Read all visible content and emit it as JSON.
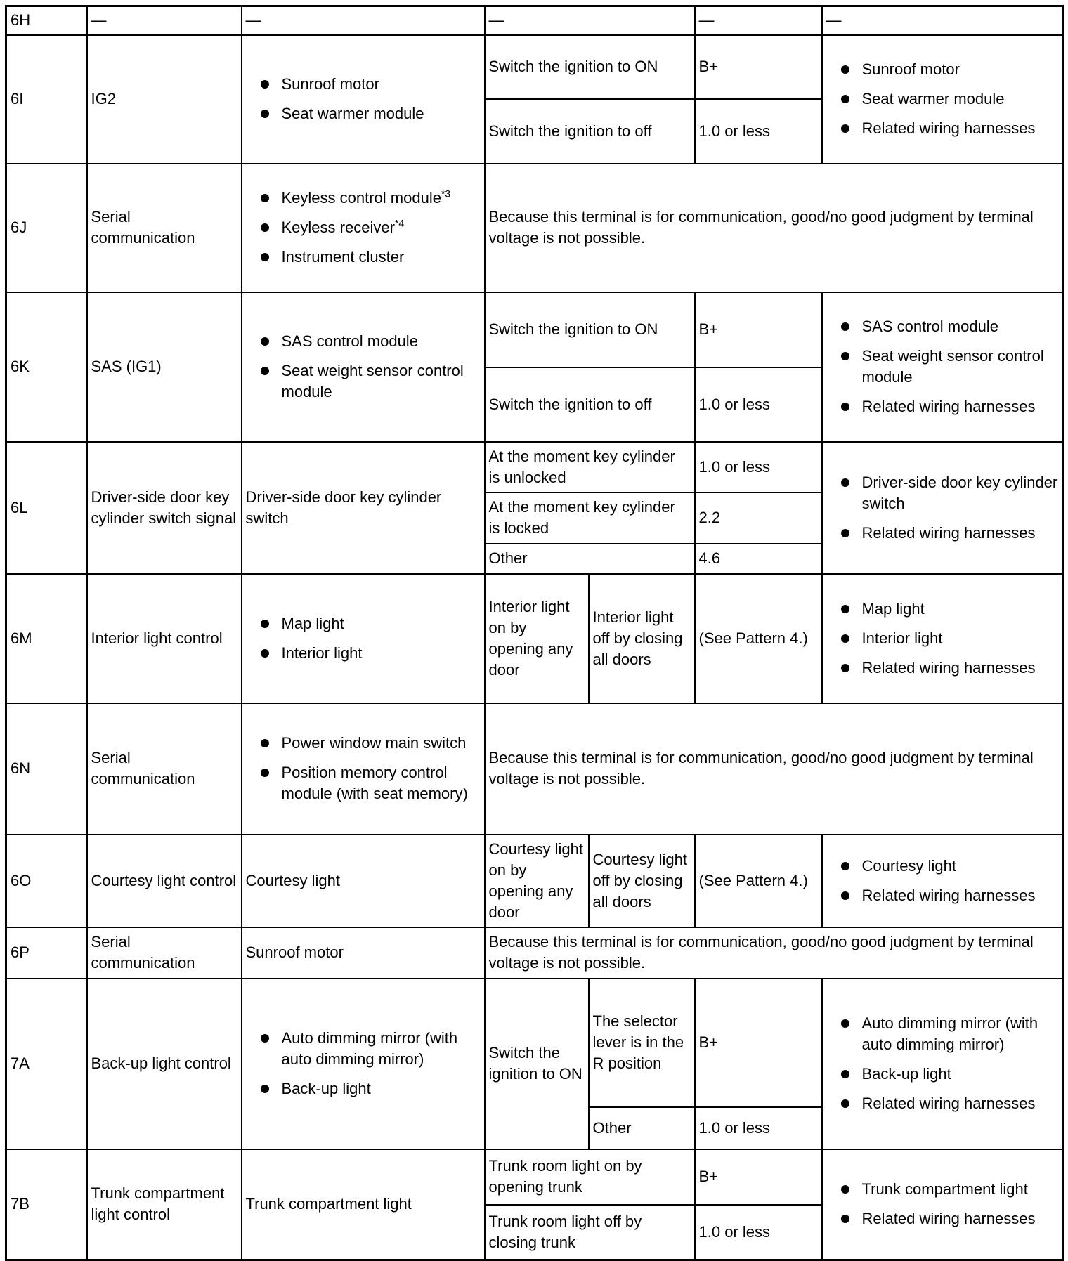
{
  "rows": {
    "r6H": {
      "terminal": "6H",
      "signal": "—",
      "connected": "—",
      "condition": "—",
      "voltage": "—",
      "inspection": "—"
    },
    "r6I": {
      "terminal": "6I",
      "signal": "IG2",
      "connected": [
        "Sunroof motor",
        "Seat warmer module"
      ],
      "conditions": [
        "Switch the ignition to ON",
        "Switch the ignition to off"
      ],
      "voltages": [
        "B+",
        "1.0 or less"
      ],
      "inspection": [
        "Sunroof motor",
        "Seat warmer module",
        "Related wiring harnesses"
      ]
    },
    "r6J": {
      "terminal": "6J",
      "signal": "Serial communication",
      "connected": [
        "Keyless control module",
        "Keyless receiver",
        "Instrument cluster"
      ],
      "superscripts": [
        "*3",
        "*4"
      ],
      "note": "Because this terminal is for communication, good/no good judgment by terminal voltage is not possible."
    },
    "r6K": {
      "terminal": "6K",
      "signal": "SAS (IG1)",
      "connected": [
        "SAS control module",
        "Seat weight sensor control module"
      ],
      "conditions": [
        "Switch the ignition to ON",
        "Switch the ignition to off"
      ],
      "voltages": [
        "B+",
        "1.0 or less"
      ],
      "inspection": [
        "SAS control module",
        "Seat weight sensor control module",
        "Related wiring harnesses"
      ]
    },
    "r6L": {
      "terminal": "6L",
      "signal": "Driver-side door key cylinder switch signal",
      "connected": "Driver-side door key cylinder switch",
      "conditions": [
        "At the moment key cylinder is unlocked",
        "At the moment key cylinder is locked",
        "Other"
      ],
      "voltages": [
        "1.0 or less",
        "2.2",
        "4.6"
      ],
      "inspection": [
        "Driver-side door key cylinder switch",
        "Related wiring harnesses"
      ]
    },
    "r6M": {
      "terminal": "6M",
      "signal": "Interior light control",
      "connected": [
        "Map light",
        "Interior light"
      ],
      "conditions": [
        "Interior light on by opening any door",
        "Interior light off by closing all doors"
      ],
      "voltage": "(See Pattern 4.)",
      "inspection": [
        "Map light",
        "Interior light",
        "Related wiring harnesses"
      ]
    },
    "r6N": {
      "terminal": "6N",
      "signal": "Serial communication",
      "connected": [
        "Power window main switch",
        "Position memory control module (with seat memory)"
      ],
      "note": "Because this terminal is for communication, good/no good judgment by terminal voltage is not possible."
    },
    "r6O": {
      "terminal": "6O",
      "signal": "Courtesy light control",
      "connected": "Courtesy light",
      "conditions": [
        "Courtesy light on by opening any door",
        "Courtesy light off by closing all doors"
      ],
      "voltage": "(See Pattern 4.)",
      "inspection": [
        "Courtesy light",
        "Related wiring harnesses"
      ]
    },
    "r6P": {
      "terminal": "6P",
      "signal": "Serial communication",
      "connected": "Sunroof motor",
      "note": "Because this terminal is for communication, good/no good judgment by terminal voltage is not possible."
    },
    "r7A": {
      "terminal": "7A",
      "signal": "Back-up light control",
      "connected": [
        "Auto dimming mirror (with auto dimming mirror)",
        "Back-up light"
      ],
      "condition_main": "Switch the ignition to ON",
      "conditions": [
        "The selector lever is in the R position",
        "Other"
      ],
      "voltages": [
        "B+",
        "1.0 or less"
      ],
      "inspection": [
        "Auto dimming mirror (with auto dimming mirror)",
        "Back-up light",
        "Related wiring harnesses"
      ]
    },
    "r7B": {
      "terminal": "7B",
      "signal": "Trunk compartment light control",
      "connected": "Trunk compartment light",
      "conditions": [
        "Trunk room light on by opening trunk",
        "Trunk room light off by closing trunk"
      ],
      "voltages": [
        "B+",
        "1.0 or less"
      ],
      "inspection": [
        "Trunk compartment light",
        "Related wiring harnesses"
      ]
    }
  }
}
